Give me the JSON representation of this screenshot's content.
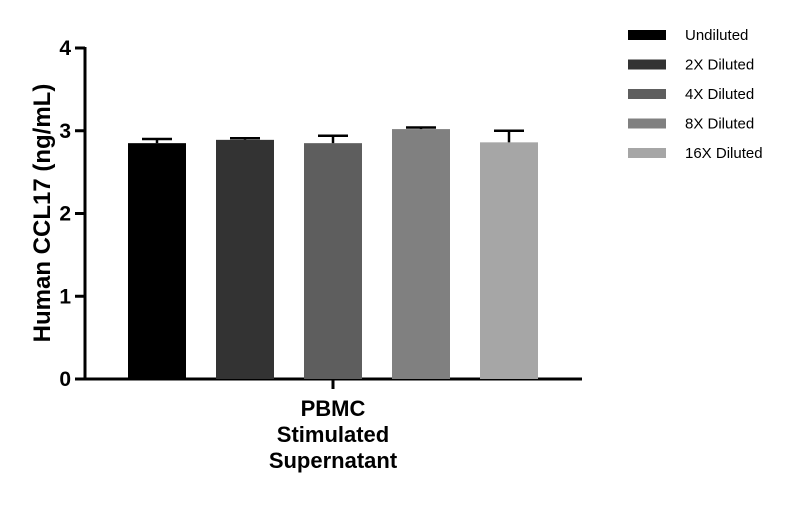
{
  "chart_data": {
    "type": "bar",
    "categories": [
      "PBMC Stimulated Supernatant"
    ],
    "category_lines": [
      "PBMC",
      "Stimulated",
      "Supernatant"
    ],
    "title": "",
    "xlabel": "",
    "ylabel": "Human CCL17 (ng/mL)",
    "ylim": [
      0,
      4
    ],
    "yticks": [
      0,
      1,
      2,
      3,
      4
    ],
    "grid": false,
    "legend_position": "top-right",
    "series": [
      {
        "name": "Undiluted",
        "values": [
          2.85
        ],
        "error": [
          0.05
        ],
        "color": "#000000"
      },
      {
        "name": "2X Diluted",
        "values": [
          2.89
        ],
        "error": [
          0.02
        ],
        "color": "#333333"
      },
      {
        "name": "4X Diluted",
        "values": [
          2.85
        ],
        "error": [
          0.09
        ],
        "color": "#5e5e5e"
      },
      {
        "name": "8X Diluted",
        "values": [
          3.02
        ],
        "error": [
          0.02
        ],
        "color": "#808080"
      },
      {
        "name": "16X Diluted",
        "values": [
          2.86
        ],
        "error": [
          0.14
        ],
        "color": "#a6a6a6"
      }
    ]
  }
}
